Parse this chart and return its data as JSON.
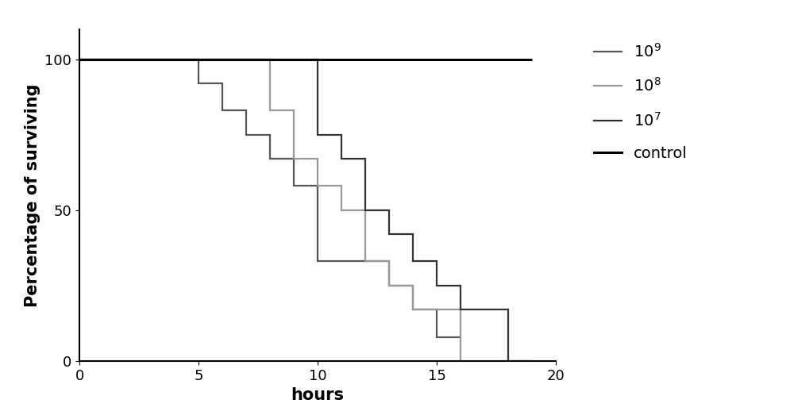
{
  "curves": {
    "10^9": {
      "x": [
        0,
        5,
        5,
        6,
        6,
        7,
        7,
        8,
        8,
        9,
        9,
        10,
        10,
        13,
        13,
        14,
        14,
        15,
        15,
        16,
        16
      ],
      "y": [
        100,
        100,
        92,
        92,
        83,
        83,
        75,
        75,
        67,
        67,
        58,
        58,
        33,
        33,
        25,
        25,
        17,
        17,
        8,
        8,
        8
      ],
      "color": "#555555",
      "linewidth": 1.6
    },
    "10^8": {
      "x": [
        0,
        8,
        8,
        9,
        9,
        10,
        10,
        11,
        11,
        12,
        12,
        13,
        13,
        14,
        14,
        16,
        16
      ],
      "y": [
        100,
        100,
        83,
        83,
        67,
        67,
        58,
        58,
        50,
        50,
        33,
        33,
        25,
        25,
        17,
        17,
        0
      ],
      "color": "#999999",
      "linewidth": 1.6
    },
    "10^7": {
      "x": [
        0,
        10,
        10,
        11,
        11,
        12,
        12,
        13,
        13,
        14,
        14,
        15,
        15,
        16,
        16,
        18,
        18,
        19,
        19
      ],
      "y": [
        100,
        100,
        75,
        75,
        67,
        67,
        50,
        50,
        42,
        42,
        33,
        33,
        25,
        25,
        17,
        17,
        0,
        0,
        0
      ],
      "color": "#333333",
      "linewidth": 1.6
    },
    "control": {
      "x": [
        0,
        19
      ],
      "y": [
        100,
        100
      ],
      "color": "#000000",
      "linewidth": 2.2
    }
  },
  "xlabel": "hours",
  "ylabel": "Percentage of surviving",
  "xlim": [
    0,
    20
  ],
  "ylim": [
    0,
    110
  ],
  "xticks": [
    0,
    5,
    10,
    15,
    20
  ],
  "yticks": [
    0,
    50,
    100
  ],
  "legend_labels": [
    "$10^{9}$",
    "$10^{8}$",
    "$10^{7}$",
    "control"
  ],
  "legend_keys": [
    "10^9",
    "10^8",
    "10^7",
    "control"
  ],
  "background_color": "#ffffff",
  "fontsize_labels": 15,
  "fontsize_ticks": 13,
  "fontsize_legend": 14
}
